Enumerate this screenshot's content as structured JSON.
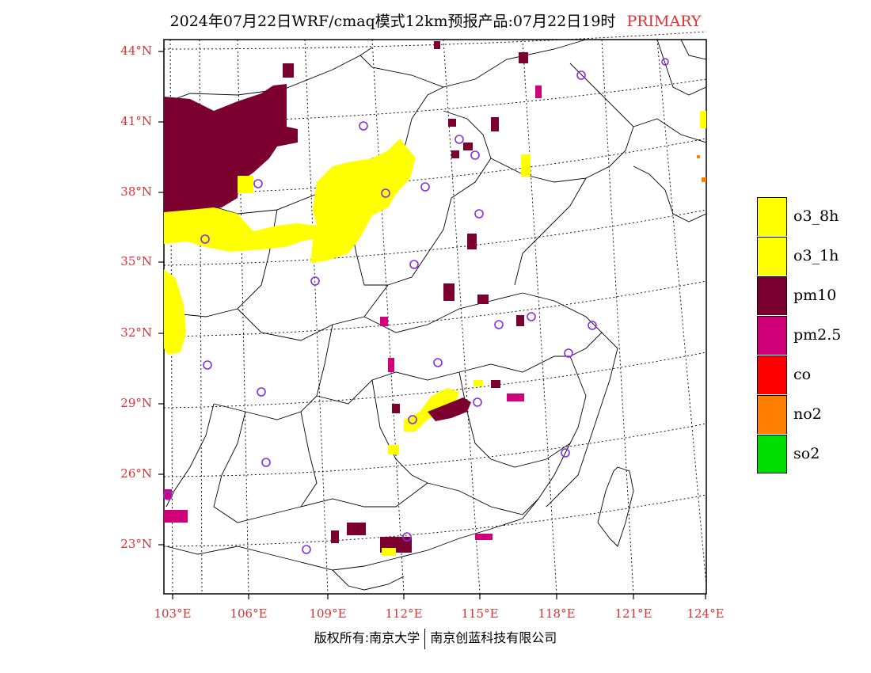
{
  "title": {
    "text": "2024年07月22日WRF/cmaq模式12km预报产品:07月22日19时",
    "primary": "PRIMARY"
  },
  "axes": {
    "lat_labels": [
      "44°N",
      "41°N",
      "38°N",
      "35°N",
      "32°N",
      "29°N",
      "26°N",
      "23°N"
    ],
    "lon_labels": [
      "103°E",
      "106°E",
      "109°E",
      "112°E",
      "115°E",
      "118°E",
      "121°E",
      "124°E"
    ]
  },
  "legend": [
    {
      "label": "o3_8h",
      "color": "#ffff00"
    },
    {
      "label": "o3_1h",
      "color": "#ffff00"
    },
    {
      "label": "pm10",
      "color": "#7b0030"
    },
    {
      "label": "pm2.5",
      "color": "#d0007a"
    },
    {
      "label": "co",
      "color": "#ff0000"
    },
    {
      "label": "no2",
      "color": "#ff7f00"
    },
    {
      "label": "so2",
      "color": "#00dd00"
    }
  ],
  "colors": {
    "o3": "#ffff00",
    "pm10": "#7b0030",
    "pm25": "#d0007a",
    "no2": "#ff7f00",
    "station_marker": "#8a2be2",
    "tick_text": "#e03030"
  },
  "copyright": {
    "left": "版权所有:南京大学",
    "right": "南京创蓝科技有限公司"
  }
}
